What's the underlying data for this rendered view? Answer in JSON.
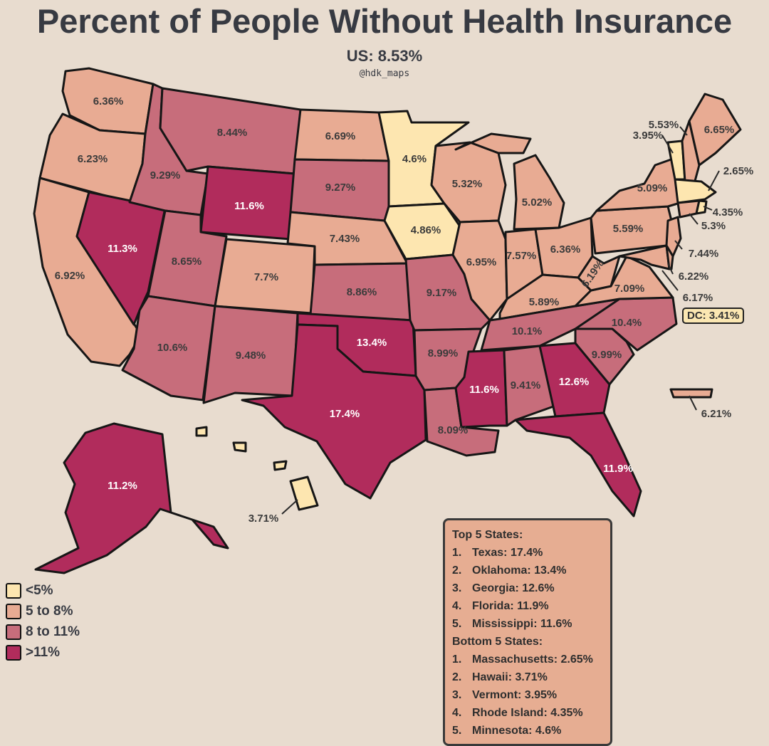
{
  "title": "Percent of People Without Health Insurance",
  "subtitle": "US: 8.53%",
  "credit": "@hdk_maps",
  "colors": {
    "lt5": "#fde6b0",
    "5to8": "#e8ab93",
    "8to11": "#c76d7b",
    "gt11": "#b12c5c",
    "background": "#e8dccf"
  },
  "legend": [
    {
      "label": "<5%",
      "color": "#fde6b0"
    },
    {
      "label": "5 to 8%",
      "color": "#e8ab93"
    },
    {
      "label": "8 to 11%",
      "color": "#c76d7b"
    },
    {
      "label": ">11%",
      "color": "#b12c5c"
    }
  ],
  "states": {
    "WA": "6.36%",
    "OR": "6.23%",
    "CA": "6.92%",
    "NV": "11.3%",
    "ID": "9.29%",
    "MT": "8.44%",
    "WY": "11.6%",
    "UT": "8.65%",
    "CO": "7.7%",
    "AZ": "10.6%",
    "NM": "9.48%",
    "ND": "6.69%",
    "SD": "9.27%",
    "NE": "7.43%",
    "KS": "8.86%",
    "OK": "13.4%",
    "TX": "17.4%",
    "MN": "4.6%",
    "IA": "4.86%",
    "MO": "9.17%",
    "AR": "8.99%",
    "LA": "8.09%",
    "WI": "5.32%",
    "IL": "6.95%",
    "MI": "5.02%",
    "IN": "7.57%",
    "OH": "6.36%",
    "KY": "5.89%",
    "TN": "10.1%",
    "MS": "11.6%",
    "AL": "9.41%",
    "GA": "12.6%",
    "FL": "11.9%",
    "SC": "9.99%",
    "NC": "10.4%",
    "VA": "7.09%",
    "WV": "6.19%",
    "PA": "5.59%",
    "NY": "5.09%",
    "ME": "6.65%",
    "NH": "5.53%",
    "VT": "3.95%",
    "MA": "2.65%",
    "RI": "4.35%",
    "CT": "5.3%",
    "NJ": "7.44%",
    "DE": "6.22%",
    "MD": "6.17%",
    "AK": "11.2%",
    "HI": "3.71%",
    "PR": "6.21%"
  },
  "dc": "DC: 3.41%",
  "top5_heading": "Top 5 States:",
  "top5": [
    {
      "rank": "1.",
      "text": "Texas: 17.4%"
    },
    {
      "rank": "2.",
      "text": "Oklahoma: 13.4%"
    },
    {
      "rank": "3.",
      "text": "Georgia: 12.6%"
    },
    {
      "rank": "4.",
      "text": "Florida: 11.9%"
    },
    {
      "rank": "5.",
      "text": "Mississippi: 11.6%"
    }
  ],
  "bottom5_heading": "Bottom 5 States:",
  "bottom5": [
    {
      "rank": "1.",
      "text": "Massachusetts: 2.65%"
    },
    {
      "rank": "2.",
      "text": "Hawaii: 3.71%"
    },
    {
      "rank": "3.",
      "text": "Vermont: 3.95%"
    },
    {
      "rank": "4.",
      "text": "Rhode Island: 4.35%"
    },
    {
      "rank": "5.",
      "text": "Minnesota: 4.6%"
    }
  ]
}
